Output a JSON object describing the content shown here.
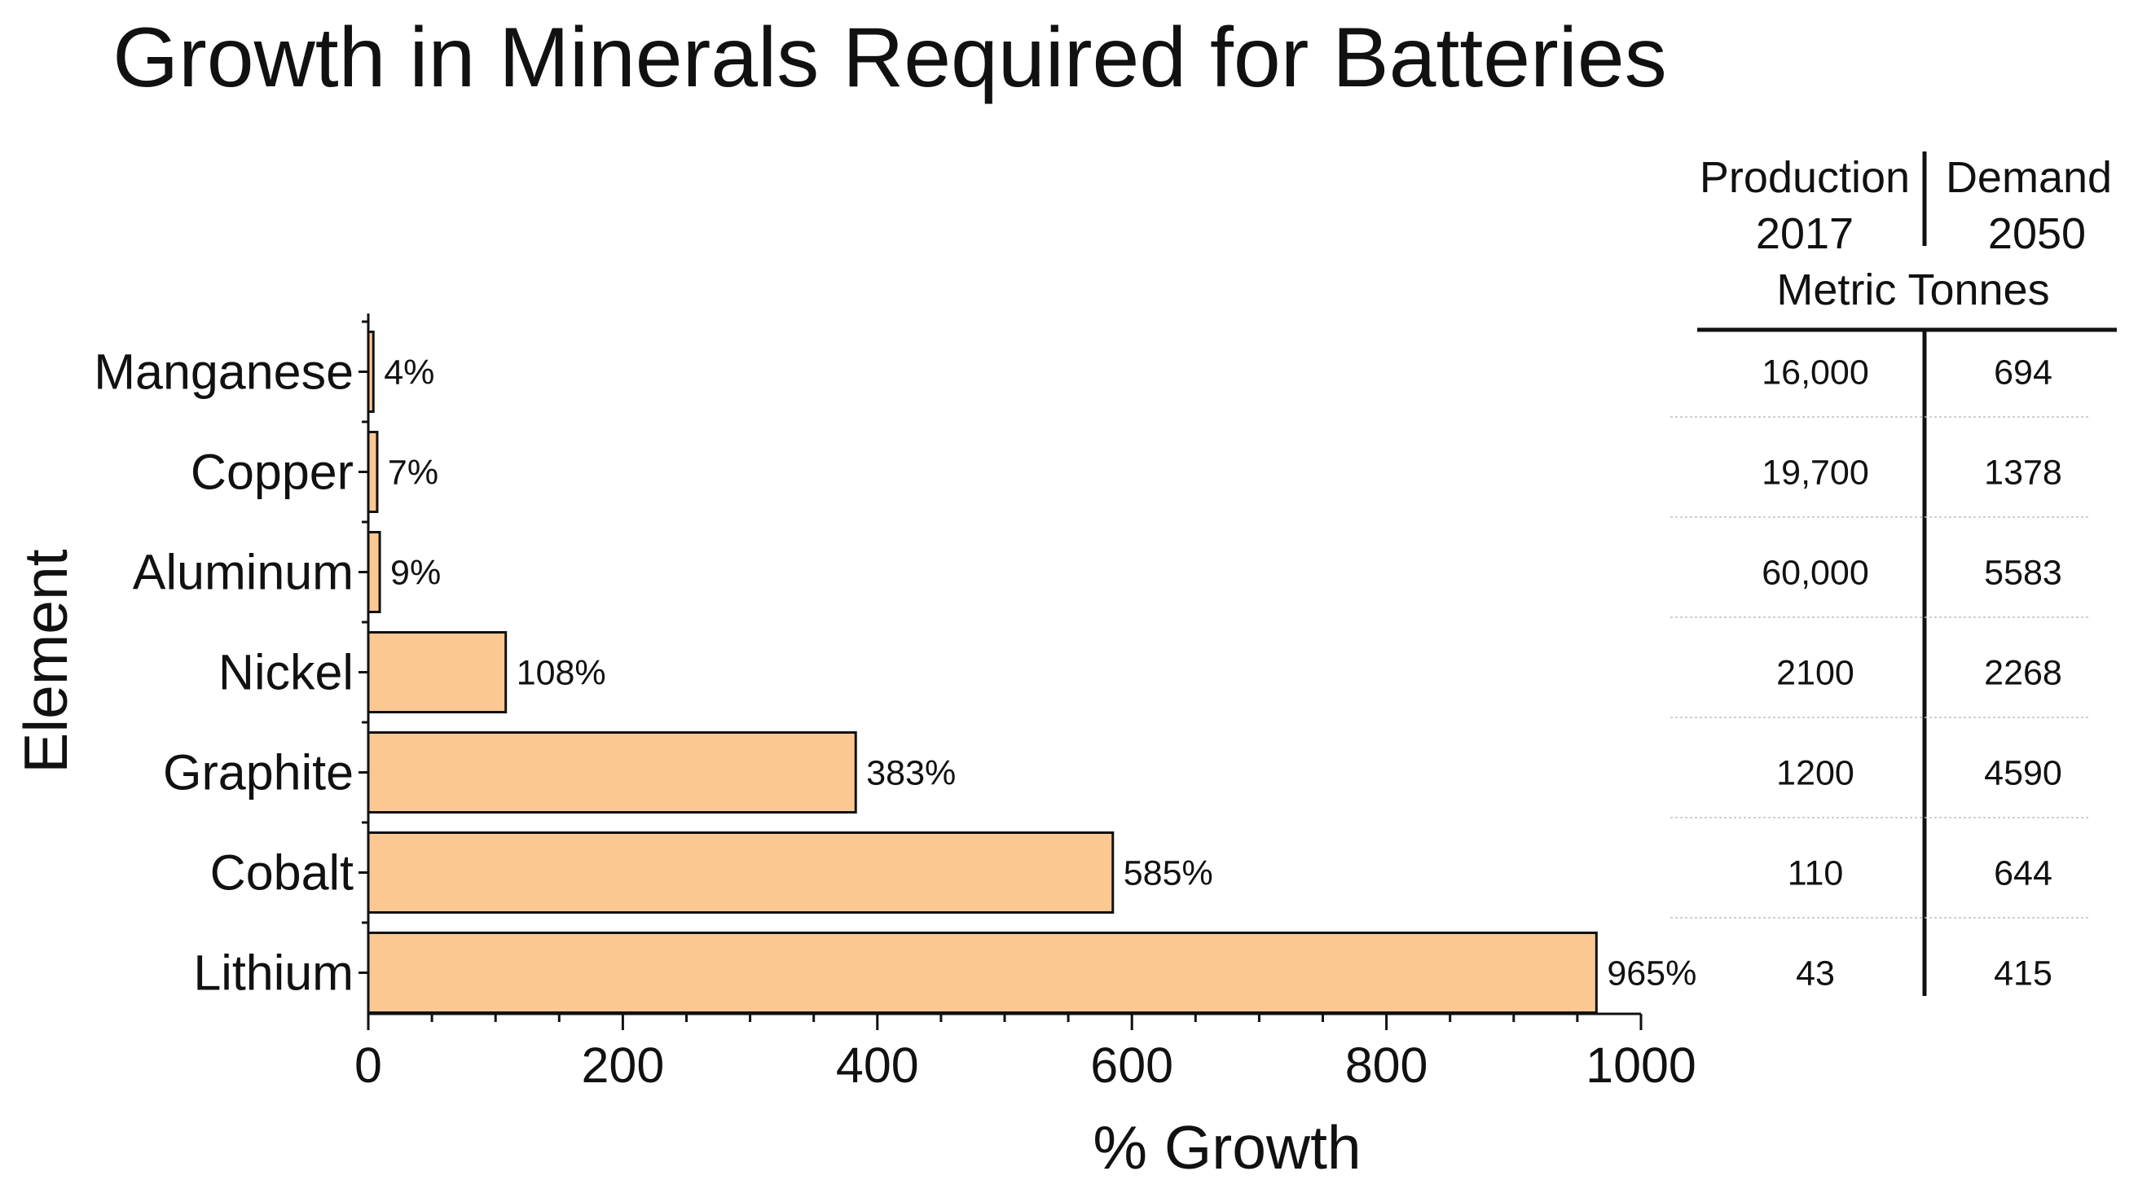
{
  "chart_data": {
    "type": "bar",
    "orientation": "horizontal",
    "title": "Growth in Minerals Required for Batteries",
    "xlabel": "% Growth",
    "ylabel": "Element",
    "xlim": [
      0,
      1000
    ],
    "xticks": [
      0,
      200,
      400,
      600,
      800,
      1000
    ],
    "grid": false,
    "bar_color": "#fcc891",
    "categories": [
      "Manganese",
      "Copper",
      "Aluminum",
      "Nickel",
      "Graphite",
      "Cobalt",
      "Lithium"
    ],
    "values": [
      4,
      7,
      9,
      108,
      383,
      585,
      965
    ],
    "value_labels": [
      "4%",
      "7%",
      "9%",
      "108%",
      "383%",
      "585%",
      "965%"
    ]
  },
  "table": {
    "production_header": "Production",
    "production_year": "2017",
    "demand_header": "Demand",
    "demand_year": "2050",
    "units": "Metric Tonnes",
    "production_values": [
      "16,000",
      "19,700",
      "60,000",
      "2100",
      "1200",
      "110",
      "43"
    ],
    "demand_values": [
      "694",
      "1378",
      "5583",
      "2268",
      "4590",
      "644",
      "415"
    ]
  }
}
